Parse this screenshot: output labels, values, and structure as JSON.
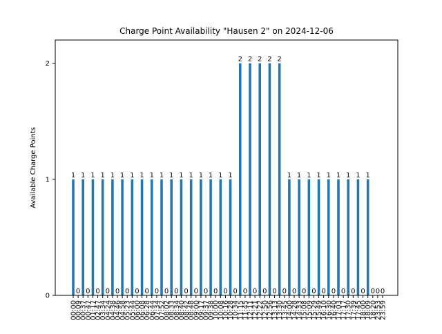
{
  "chart_data": {
    "type": "bar",
    "title": "Charge Point Availability \"Hausen 2\" on 2024-12-06",
    "xlabel": "",
    "ylabel": "Available Charge Points",
    "ylim": [
      0,
      2.2
    ],
    "yticks": [
      0,
      1,
      2
    ],
    "grid": false,
    "bar_color": "#1f77b4",
    "categories": [
      "00:00",
      "00:09",
      "00:37",
      "00:47",
      "01:17",
      "02:47",
      "03:34",
      "04:24",
      "04:38",
      "04:46",
      "04:58",
      "05:23",
      "05:44",
      "06:00",
      "06:08",
      "06:28",
      "06:44",
      "07:34",
      "07:52",
      "08:02",
      "08:33",
      "08:34",
      "08:40",
      "08:42",
      "08:48",
      "09:00",
      "09:17",
      "09:37",
      "09:38",
      "10:00",
      "10:08",
      "10:16",
      "10:28",
      "10:34",
      "11:15",
      "11:45",
      "12:11",
      "12:21",
      "12:22",
      "12:50",
      "12:56",
      "13:13",
      "13:30",
      "13:45",
      "14:00",
      "14:28",
      "14:33",
      "15:08",
      "15:09",
      "15:29",
      "15:49",
      "16:10",
      "16:30",
      "16:40",
      "17:03",
      "17:17",
      "17:30",
      "17:39",
      "17:45",
      "18:00",
      "18:09",
      "18:20",
      "23:53",
      "23:59"
    ],
    "values": [
      1,
      0,
      1,
      0,
      1,
      0,
      1,
      0,
      1,
      0,
      1,
      0,
      1,
      0,
      1,
      0,
      1,
      0,
      1,
      0,
      1,
      0,
      1,
      0,
      1,
      0,
      1,
      0,
      1,
      0,
      1,
      0,
      1,
      0,
      2,
      0,
      2,
      0,
      2,
      0,
      2,
      0,
      2,
      0,
      1,
      0,
      1,
      0,
      1,
      0,
      1,
      0,
      1,
      0,
      1,
      0,
      1,
      0,
      1,
      0,
      1,
      0,
      0,
      0
    ],
    "data_labels": [
      "1",
      "0",
      "1",
      "0",
      "1",
      "0",
      "1",
      "0",
      "1",
      "0",
      "1",
      "0",
      "1",
      "0",
      "1",
      "0",
      "1",
      "0",
      "1",
      "0",
      "1",
      "0",
      "1",
      "0",
      "1",
      "0",
      "1",
      "0",
      "1",
      "0",
      "1",
      "0",
      "1",
      "0",
      "2",
      "0",
      "2",
      "0",
      "2",
      "0",
      "2",
      "0",
      "2",
      "0",
      "1",
      "0",
      "1",
      "0",
      "1",
      "0",
      "1",
      "0",
      "1",
      "0",
      "1",
      "0",
      "1",
      "0",
      "1",
      "0",
      "1",
      "0",
      "0",
      "0"
    ]
  }
}
